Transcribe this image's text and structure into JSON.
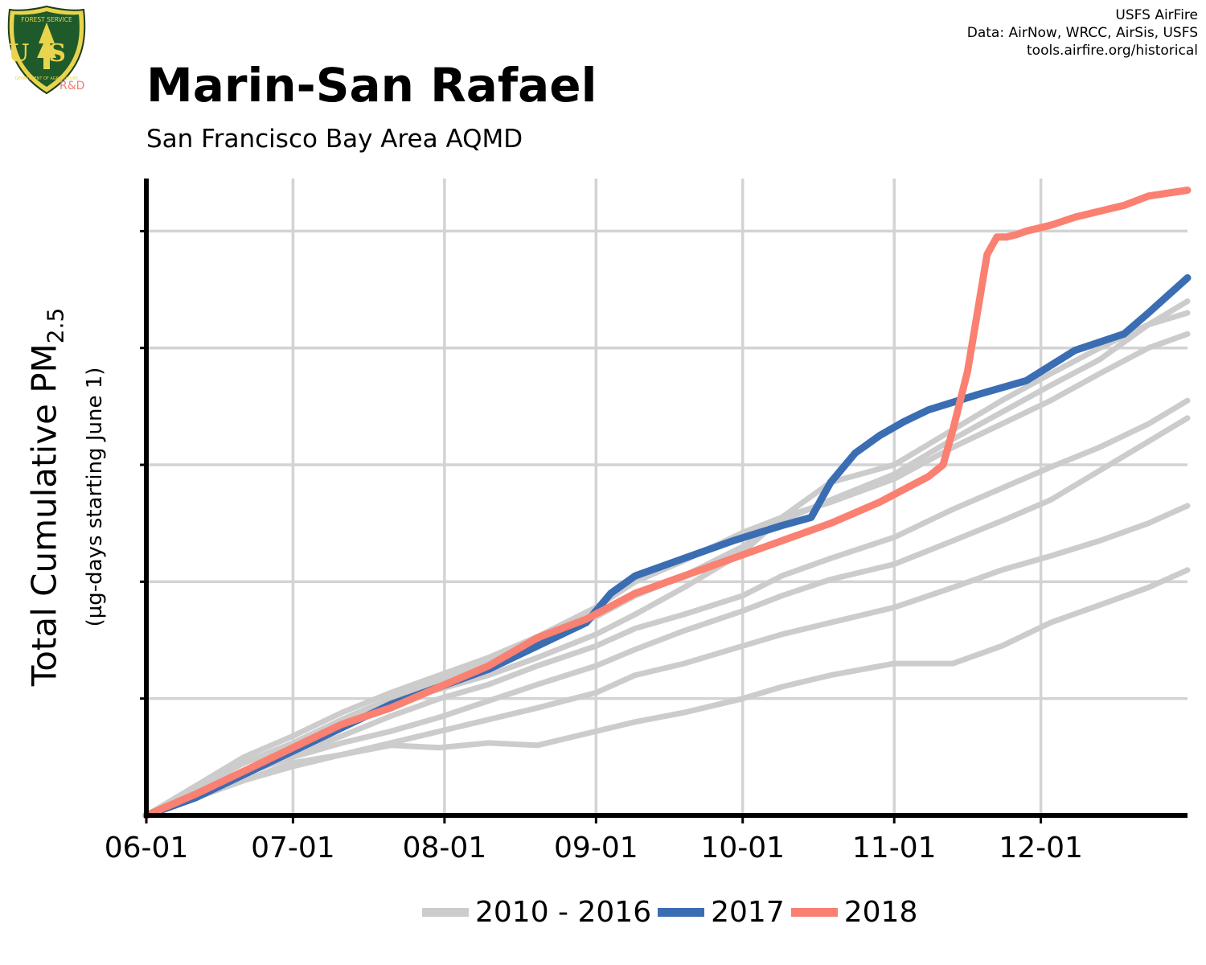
{
  "header": {
    "title": "Marin-San Rafael",
    "subtitle": "San Francisco Bay Area AQMD",
    "credit_1": "USFS AirFire",
    "credit_2": "Data: AirNow, WRCC, AirSis, USFS",
    "credit_3": "tools.airfire.org/historical",
    "logo_badge_text": "FOREST SERVICE",
    "logo_initials": "US",
    "logo_dept_text": "DEPARTMENT OF AGRICULTURE",
    "logo_rd": "R&D"
  },
  "colors": {
    "historical": "#cccccc",
    "y2017": "#3b6db3",
    "y2018": "#fa8072",
    "grid": "#d3d3d3",
    "axis": "#000000"
  },
  "chart_data": {
    "type": "line",
    "title": "Marin-San Rafael",
    "subtitle": "San Francisco Bay Area AQMD",
    "xlabel": "",
    "ylabel": "Total Cumulative PM",
    "ylabel_sub": "2.5",
    "ylabel2": "(µg-days starting June 1)",
    "x_ticks": [
      "06-01",
      "07-01",
      "08-01",
      "09-01",
      "10-01",
      "11-01",
      "12-01"
    ],
    "x_tick_days": [
      0,
      30,
      61,
      92,
      122,
      153,
      183
    ],
    "xlim": [
      0,
      213
    ],
    "ylim": [
      0,
      5.45
    ],
    "y_unit_note": "y in gridline units (no tick labels printed)",
    "grid": true,
    "legend_position": "bottom",
    "series": [
      {
        "name": "2010 - 2016",
        "style": "historical",
        "x": [
          0,
          10,
          20,
          30,
          40,
          50,
          60,
          70,
          80,
          92,
          100,
          110,
          122,
          130,
          140,
          153,
          165,
          175,
          185,
          195,
          205,
          213
        ],
        "y": [
          0,
          0.25,
          0.5,
          0.68,
          0.88,
          1.05,
          1.2,
          1.35,
          1.53,
          1.78,
          2.0,
          2.18,
          2.42,
          2.55,
          2.68,
          2.88,
          3.15,
          3.35,
          3.55,
          3.78,
          4.0,
          4.12
        ]
      },
      {
        "name": "2010 - 2016",
        "style": "historical",
        "x": [
          0,
          10,
          20,
          30,
          40,
          50,
          60,
          70,
          80,
          92,
          100,
          110,
          122,
          130,
          140,
          153,
          165,
          175,
          185,
          195,
          205,
          213
        ],
        "y": [
          0,
          0.25,
          0.45,
          0.6,
          0.8,
          0.98,
          1.08,
          1.2,
          1.35,
          1.55,
          1.72,
          1.95,
          2.25,
          2.55,
          2.85,
          3.0,
          3.3,
          3.55,
          3.78,
          4.0,
          4.2,
          4.3
        ]
      },
      {
        "name": "2010 - 2016",
        "style": "historical",
        "x": [
          0,
          10,
          20,
          30,
          40,
          50,
          60,
          70,
          80,
          92,
          100,
          110,
          122,
          130,
          140,
          153,
          165,
          175,
          185,
          195,
          205,
          213
        ],
        "y": [
          0,
          0.22,
          0.45,
          0.62,
          0.82,
          1.0,
          1.15,
          1.32,
          1.5,
          1.7,
          1.88,
          2.05,
          2.3,
          2.52,
          2.7,
          2.92,
          3.22,
          3.45,
          3.68,
          3.9,
          4.2,
          4.4
        ]
      },
      {
        "name": "2010 - 2016",
        "style": "historical",
        "x": [
          0,
          10,
          20,
          30,
          40,
          50,
          60,
          70,
          80,
          92,
          100,
          110,
          122,
          130,
          140,
          153,
          165,
          175,
          185,
          195,
          205,
          213
        ],
        "y": [
          0,
          0.2,
          0.38,
          0.52,
          0.68,
          0.85,
          1.0,
          1.12,
          1.28,
          1.45,
          1.6,
          1.72,
          1.88,
          2.05,
          2.2,
          2.38,
          2.62,
          2.8,
          2.98,
          3.15,
          3.35,
          3.55
        ]
      },
      {
        "name": "2010 - 2016",
        "style": "historical",
        "x": [
          0,
          10,
          20,
          30,
          40,
          50,
          60,
          70,
          80,
          92,
          100,
          110,
          122,
          130,
          140,
          153,
          165,
          175,
          185,
          195,
          205,
          213
        ],
        "y": [
          0,
          0.18,
          0.36,
          0.5,
          0.62,
          0.72,
          0.84,
          0.98,
          1.12,
          1.28,
          1.42,
          1.58,
          1.75,
          1.88,
          2.02,
          2.15,
          2.35,
          2.52,
          2.7,
          2.95,
          3.2,
          3.4
        ]
      },
      {
        "name": "2010 - 2016",
        "style": "historical",
        "x": [
          0,
          10,
          20,
          30,
          40,
          50,
          60,
          70,
          80,
          92,
          100,
          110,
          122,
          130,
          140,
          153,
          165,
          175,
          185,
          195,
          205,
          213
        ],
        "y": [
          0,
          0.15,
          0.3,
          0.42,
          0.52,
          0.62,
          0.72,
          0.82,
          0.92,
          1.05,
          1.2,
          1.3,
          1.45,
          1.55,
          1.65,
          1.78,
          1.95,
          2.1,
          2.22,
          2.35,
          2.5,
          2.65
        ]
      },
      {
        "name": "2010 - 2016",
        "style": "historical",
        "x": [
          0,
          10,
          20,
          30,
          40,
          50,
          60,
          70,
          80,
          92,
          100,
          110,
          122,
          130,
          140,
          153,
          165,
          175,
          185,
          195,
          205,
          213
        ],
        "y": [
          0,
          0.15,
          0.3,
          0.45,
          0.52,
          0.6,
          0.58,
          0.62,
          0.6,
          0.72,
          0.8,
          0.88,
          1.0,
          1.1,
          1.2,
          1.3,
          1.3,
          1.45,
          1.65,
          1.8,
          1.95,
          2.1
        ]
      },
      {
        "name": "2017",
        "style": "y2017",
        "x": [
          0,
          10,
          20,
          30,
          40,
          50,
          60,
          70,
          80,
          90,
          95,
          100,
          110,
          120,
          130,
          136,
          140,
          145,
          150,
          155,
          160,
          170,
          180,
          185,
          190,
          200,
          205,
          213
        ],
        "y": [
          0,
          0.15,
          0.35,
          0.55,
          0.75,
          0.95,
          1.1,
          1.25,
          1.45,
          1.65,
          1.9,
          2.05,
          2.2,
          2.35,
          2.48,
          2.55,
          2.85,
          3.1,
          3.25,
          3.37,
          3.47,
          3.6,
          3.72,
          3.85,
          3.98,
          4.12,
          4.3,
          4.6
        ]
      },
      {
        "name": "2018",
        "style": "y2018",
        "x": [
          0,
          10,
          20,
          30,
          40,
          50,
          60,
          70,
          80,
          90,
          100,
          110,
          120,
          130,
          140,
          150,
          160,
          163,
          165,
          168,
          170,
          172,
          174,
          176,
          178,
          180,
          185,
          190,
          200,
          205,
          213
        ],
        "y": [
          0,
          0.18,
          0.38,
          0.58,
          0.78,
          0.92,
          1.1,
          1.28,
          1.52,
          1.68,
          1.9,
          2.05,
          2.2,
          2.35,
          2.5,
          2.68,
          2.9,
          3.0,
          3.3,
          3.8,
          4.3,
          4.8,
          4.95,
          4.95,
          4.97,
          5.0,
          5.05,
          5.12,
          5.22,
          5.3,
          5.35
        ]
      }
    ]
  }
}
